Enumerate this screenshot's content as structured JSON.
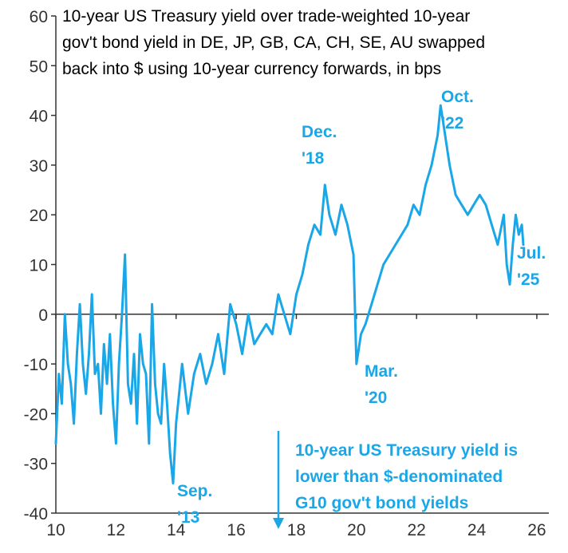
{
  "chart_data": {
    "type": "line",
    "title_lines": [
      "10-year US Treasury yield over trade-weighted 10-year",
      "gov't bond yield in DE, JP, GB, CA, CH, SE, AU swapped",
      "back into $ using 10-year currency forwards, in bps"
    ],
    "xlabel": "",
    "ylabel": "",
    "xlim": [
      10,
      26.4
    ],
    "ylim": [
      -40,
      60
    ],
    "x_ticks": [
      10,
      12,
      14,
      16,
      18,
      20,
      22,
      24,
      26
    ],
    "x_tick_labels": [
      "10",
      "12",
      "14",
      "16",
      "18",
      "20",
      "22",
      "24",
      "26"
    ],
    "y_ticks": [
      -40,
      -30,
      -20,
      -10,
      0,
      10,
      20,
      30,
      40,
      50,
      60
    ],
    "y_tick_labels": [
      "-40",
      "-30",
      "-20",
      "-10",
      "0",
      "10",
      "20",
      "30",
      "40",
      "50",
      "60"
    ],
    "grid": false,
    "line_color": "#1aa7e8",
    "annotation_color": "#1aa7e8",
    "series": [
      {
        "x": [
          10.0,
          10.1,
          10.2,
          10.3,
          10.4,
          10.5,
          10.6,
          10.7,
          10.8,
          10.9,
          11.0,
          11.1,
          11.2,
          11.3,
          11.4,
          11.5,
          11.6,
          11.7,
          11.8,
          11.9,
          12.0,
          12.1,
          12.2,
          12.3,
          12.4,
          12.5,
          12.6,
          12.7,
          12.8,
          12.9,
          13.0,
          13.1,
          13.2,
          13.3,
          13.4,
          13.5,
          13.6,
          13.7,
          13.8,
          13.9,
          14.0,
          14.2,
          14.4,
          14.6,
          14.8,
          15.0,
          15.2,
          15.4,
          15.6,
          15.8,
          16.0,
          16.2,
          16.4,
          16.6,
          16.8,
          17.0,
          17.2,
          17.4,
          17.6,
          17.8,
          18.0,
          18.2,
          18.4,
          18.6,
          18.8,
          18.95,
          19.1,
          19.3,
          19.5,
          19.7,
          19.9,
          20.0,
          20.15,
          20.3,
          20.5,
          20.7,
          20.9,
          21.1,
          21.3,
          21.5,
          21.7,
          21.9,
          22.1,
          22.3,
          22.5,
          22.7,
          22.8,
          22.9,
          23.1,
          23.3,
          23.5,
          23.7,
          23.9,
          24.1,
          24.3,
          24.5,
          24.7,
          24.9,
          25.0,
          25.1,
          25.2,
          25.3,
          25.4,
          25.5,
          25.55
        ],
        "y": [
          -26,
          -12,
          -18,
          0,
          -10,
          -14,
          -22,
          -8,
          2,
          -10,
          -16,
          -8,
          4,
          -12,
          -10,
          -20,
          -6,
          -14,
          -4,
          -18,
          -26,
          -10,
          0,
          12,
          -14,
          -18,
          -8,
          -22,
          -4,
          -10,
          -12,
          -26,
          2,
          -14,
          -20,
          -22,
          -10,
          -18,
          -28,
          -34,
          -22,
          -10,
          -20,
          -12,
          -8,
          -14,
          -10,
          -4,
          -12,
          2,
          -2,
          -8,
          0,
          -6,
          -4,
          -2,
          -4,
          4,
          0,
          -4,
          4,
          8,
          14,
          18,
          16,
          26,
          20,
          16,
          22,
          18,
          12,
          -10,
          -4,
          -2,
          2,
          6,
          10,
          12,
          14,
          16,
          18,
          22,
          20,
          26,
          30,
          36,
          42,
          38,
          30,
          24,
          22,
          20,
          22,
          24,
          22,
          18,
          14,
          20,
          10,
          6,
          14,
          20,
          16,
          18,
          14
        ]
      }
    ],
    "annotations": {
      "dec18": [
        "Dec.",
        "'18"
      ],
      "oct22": [
        "Oct.",
        "'22"
      ],
      "jul25": [
        "Jul.",
        "'25"
      ],
      "mar20": [
        "Mar.",
        "'20"
      ],
      "sep13": [
        "Sep.",
        "'13"
      ],
      "note": [
        "10-year US Treasury yield is",
        "lower than $-denominated",
        "G10 gov't bond yields"
      ]
    }
  }
}
